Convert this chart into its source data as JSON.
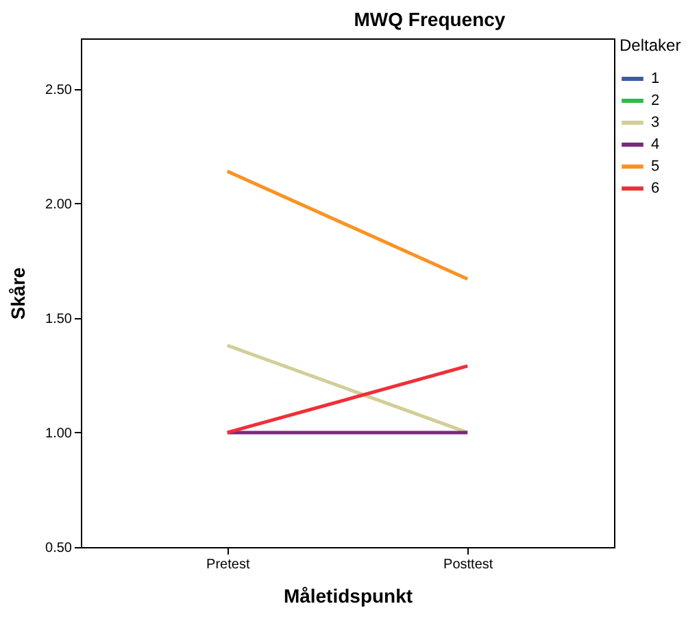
{
  "chart_data": {
    "type": "line",
    "title": "MWQ Frequency",
    "xlabel": "Måletidspunkt",
    "ylabel": "Skåre",
    "legend_title": "Deltaker",
    "categories": [
      "Pretest",
      "Posttest"
    ],
    "series": [
      {
        "name": "1",
        "color": "#3e58ac",
        "values": [
          null,
          null
        ]
      },
      {
        "name": "2",
        "color": "#2eb848",
        "values": [
          null,
          null
        ]
      },
      {
        "name": "3",
        "color": "#d3ce97",
        "values": [
          1.38,
          1.0
        ]
      },
      {
        "name": "4",
        "color": "#7b287d",
        "values": [
          1.0,
          1.0
        ]
      },
      {
        "name": "5",
        "color": "#fb9222",
        "values": [
          2.14,
          1.67
        ]
      },
      {
        "name": "6",
        "color": "#ee3039",
        "values": [
          1.0,
          1.29
        ]
      }
    ],
    "ylim": [
      0.5,
      2.72
    ],
    "yticks": [
      {
        "value": 0.5,
        "label": "0.50"
      },
      {
        "value": 1.0,
        "label": "1.00"
      },
      {
        "value": 1.5,
        "label": "1.50"
      },
      {
        "value": 2.0,
        "label": "2.00"
      },
      {
        "value": 2.5,
        "label": "2.50"
      }
    ],
    "grid": false,
    "legend": "top right",
    "marker": "none",
    "line_style": "solid"
  }
}
